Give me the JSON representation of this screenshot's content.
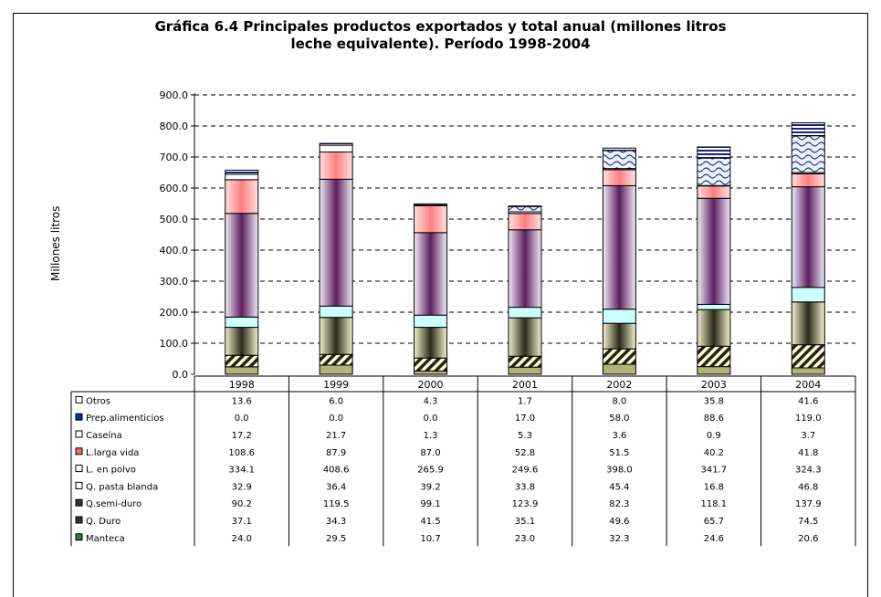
{
  "title_line1": "Gráfica 6.4 Principales productos exportados y total anual (millones litros",
  "title_line2": "leche equivalente). Período 1998-2004",
  "chart_data": {
    "type": "bar",
    "stacked": true,
    "title": "Gráfica 6.4 Principales productos exportados y total anual (millones litros leche equivalente). Período 1998-2004",
    "ylabel": "Millones litros",
    "xlabel": "",
    "ylim": [
      0,
      900
    ],
    "yticks": [
      "0.0",
      "100.0",
      "200.0",
      "300.0",
      "400.0",
      "500.0",
      "600.0",
      "700.0",
      "800.0",
      "900.0"
    ],
    "grid": "horizontal-dashed",
    "legend": "data-table-below",
    "categories": [
      "1998",
      "1999",
      "2000",
      "2001",
      "2002",
      "2003",
      "2004"
    ],
    "series": [
      {
        "name": "Manteca",
        "values": [
          24.0,
          29.5,
          10.7,
          23.0,
          32.3,
          24.6,
          20.6
        ],
        "labels": [
          "24.0",
          "29.5",
          "10.7",
          "23.0",
          "32.3",
          "24.6",
          "20.6"
        ],
        "color": "#b3b378",
        "pattern": "solid",
        "legend_glyph": "#2e7d32"
      },
      {
        "name": "Q. Duro",
        "values": [
          37.1,
          34.3,
          41.5,
          35.1,
          49.6,
          65.7,
          74.5
        ],
        "labels": [
          "37.1",
          "34.3",
          "41.5",
          "35.1",
          "49.6",
          "65.7",
          "74.5"
        ],
        "color": "#ffffcc",
        "pattern": "diagonal",
        "legend_glyph": "#333333"
      },
      {
        "name": "Q.semi-duro",
        "values": [
          90.2,
          119.5,
          99.1,
          123.9,
          82.3,
          118.1,
          137.9
        ],
        "labels": [
          "90.2",
          "119.5",
          "99.1",
          "123.9",
          "82.3",
          "118.1",
          "137.9"
        ],
        "color": "#e6e6b0",
        "pattern": "gradient-olive",
        "legend_glyph": "#333333"
      },
      {
        "name": "Q. pasta blanda",
        "values": [
          32.9,
          36.4,
          39.2,
          33.8,
          45.4,
          16.8,
          46.8
        ],
        "labels": [
          "32.9",
          "36.4",
          "39.2",
          "33.8",
          "45.4",
          "16.8",
          "46.8"
        ],
        "color": "#ccffff",
        "pattern": "solid",
        "legend_glyph": "#ffffff"
      },
      {
        "name": "L. en polvo",
        "values": [
          334.1,
          408.6,
          265.9,
          249.6,
          398.0,
          341.7,
          324.3
        ],
        "labels": [
          "334.1",
          "408.6",
          "265.9",
          "249.6",
          "398.0",
          "341.7",
          "324.3"
        ],
        "color": "#d9c6e6",
        "pattern": "gradient-purple",
        "legend_glyph": "#ffffff"
      },
      {
        "name": "L.larga vida",
        "values": [
          108.6,
          87.9,
          87.0,
          52.8,
          51.5,
          40.2,
          41.8
        ],
        "labels": [
          "108.6",
          "87.9",
          "87.0",
          "52.8",
          "51.5",
          "40.2",
          "41.8"
        ],
        "color": "#ff9999",
        "pattern": "gradient-pink",
        "legend_glyph": "#ff6666"
      },
      {
        "name": "Caseína",
        "values": [
          17.2,
          21.7,
          1.3,
          5.3,
          3.6,
          0.9,
          3.7
        ],
        "labels": [
          "17.2",
          "21.7",
          "1.3",
          "5.3",
          "3.6",
          "0.9",
          "3.7"
        ],
        "color": "#ffffff",
        "pattern": "solid",
        "legend_glyph": "#ffffff"
      },
      {
        "name": "Prep.alimenticios",
        "values": [
          0.0,
          0.0,
          0.0,
          17.0,
          58.0,
          88.6,
          119.0
        ],
        "labels": [
          "0.0",
          "0.0",
          "0.0",
          "17.0",
          "58.0",
          "88.6",
          "119.0"
        ],
        "color": "#dfe8f8",
        "pattern": "wave",
        "legend_glyph": "#003399"
      },
      {
        "name": "Otros",
        "values": [
          13.6,
          6.0,
          4.3,
          1.7,
          8.0,
          35.8,
          41.6
        ],
        "labels": [
          "13.6",
          "6.0",
          "4.3",
          "1.7",
          "8.0",
          "35.8",
          "41.6"
        ],
        "color": "#1a237e",
        "pattern": "stripes-blue",
        "legend_glyph": "#ffffff"
      }
    ]
  }
}
